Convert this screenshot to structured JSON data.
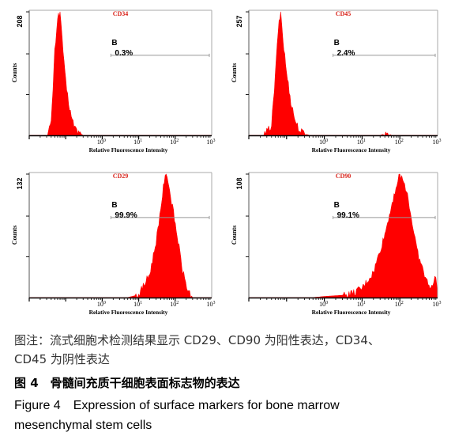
{
  "chart_data": [
    {
      "type": "area",
      "title": "CD34",
      "xlabel": "Relative Fluorescence Intensity",
      "ylabel": "Counts",
      "x_scale": "log",
      "xlim": [
        0.01,
        1000
      ],
      "x_ticks": [
        {
          "value": 1,
          "label": "10",
          "exp": "0"
        },
        {
          "value": 10,
          "label": "10",
          "exp": "1"
        },
        {
          "value": 100,
          "label": "10",
          "exp": "2"
        },
        {
          "value": 1000,
          "label": "10",
          "exp": "3"
        }
      ],
      "ylim": [
        0,
        208
      ],
      "y_tick_label": "208",
      "gate": {
        "name": "B",
        "label": "0.3%",
        "range": [
          1,
          1000
        ]
      },
      "x": [
        0.01,
        0.03,
        0.04,
        0.05,
        0.06,
        0.07,
        0.08,
        0.09,
        0.1,
        0.12,
        0.15,
        0.2,
        0.25,
        0.3,
        1000
      ],
      "y": [
        0,
        0,
        20,
        140,
        200,
        208,
        165,
        120,
        90,
        55,
        25,
        8,
        3,
        0,
        0
      ],
      "series_color": "#ff0000"
    },
    {
      "type": "area",
      "title": "CD45",
      "xlabel": "Relative Fluorescence Intensity",
      "ylabel": "Counts",
      "x_scale": "log",
      "xlim": [
        0.01,
        1000
      ],
      "x_ticks": [
        {
          "value": 1,
          "label": "10",
          "exp": "0"
        },
        {
          "value": 10,
          "label": "10",
          "exp": "1"
        },
        {
          "value": 100,
          "label": "10",
          "exp": "2"
        },
        {
          "value": 1000,
          "label": "10",
          "exp": "3"
        }
      ],
      "ylim": [
        0,
        257
      ],
      "y_tick_label": "257",
      "gate": {
        "name": "B",
        "label": "2.4%",
        "range": [
          1,
          1000
        ]
      },
      "x": [
        0.01,
        0.025,
        0.04,
        0.05,
        0.06,
        0.07,
        0.08,
        0.1,
        0.13,
        0.17,
        0.22,
        0.3,
        0.4,
        30,
        40,
        50,
        60,
        1000
      ],
      "y": [
        0,
        0,
        20,
        120,
        220,
        257,
        200,
        130,
        70,
        30,
        10,
        3,
        0,
        0,
        3,
        4,
        0,
        0
      ],
      "series_color": "#ff0000"
    },
    {
      "type": "area",
      "title": "CD29",
      "xlabel": "Relative Fluorescence Intensity",
      "ylabel": "Counts",
      "x_scale": "log",
      "xlim": [
        0.01,
        1000
      ],
      "x_ticks": [
        {
          "value": 1,
          "label": "10",
          "exp": "0"
        },
        {
          "value": 10,
          "label": "10",
          "exp": "1"
        },
        {
          "value": 100,
          "label": "10",
          "exp": "2"
        },
        {
          "value": 1000,
          "label": "10",
          "exp": "3"
        }
      ],
      "ylim": [
        0,
        132
      ],
      "y_tick_label": "132",
      "gate": {
        "name": "B",
        "label": "99.9%",
        "range": [
          1,
          1000
        ]
      },
      "x": [
        0.01,
        5,
        10,
        20,
        30,
        40,
        50,
        60,
        70,
        90,
        120,
        160,
        220,
        300,
        1000
      ],
      "y": [
        0,
        0,
        3,
        25,
        60,
        95,
        125,
        132,
        115,
        90,
        60,
        28,
        8,
        0,
        0
      ],
      "series_color": "#ff0000"
    },
    {
      "type": "area",
      "title": "CD90",
      "xlabel": "Relative Fluorescence Intensity",
      "ylabel": "Counts",
      "x_scale": "log",
      "xlim": [
        0.01,
        1000
      ],
      "x_ticks": [
        {
          "value": 1,
          "label": "10",
          "exp": "0"
        },
        {
          "value": 10,
          "label": "10",
          "exp": "1"
        },
        {
          "value": 100,
          "label": "10",
          "exp": "2"
        },
        {
          "value": 1000,
          "label": "10",
          "exp": "3"
        }
      ],
      "ylim": [
        0,
        108
      ],
      "y_tick_label": "108",
      "gate": {
        "name": "B",
        "label": "99.1%",
        "range": [
          1,
          1000
        ]
      },
      "x": [
        0.01,
        0.5,
        1,
        3,
        6,
        10,
        20,
        40,
        70,
        100,
        150,
        200,
        300,
        500,
        700,
        900,
        1000
      ],
      "y": [
        0,
        0,
        1,
        2,
        4,
        8,
        22,
        55,
        90,
        108,
        95,
        70,
        38,
        15,
        8,
        20,
        0
      ],
      "series_color": "#ff0000"
    }
  ],
  "caption": {
    "note_line1": "图注：流式细胞术检测结果显示 CD29、CD90 为阳性表达，CD34、",
    "note_line2": "CD45 为阴性表达",
    "figure_cn": "图 4　骨髓间充质干细胞表面标志物的表达",
    "figure_en_line1": "Figure 4　Expression of surface markers for bone marrow",
    "figure_en_line2": "mesenchymal stem cells"
  }
}
